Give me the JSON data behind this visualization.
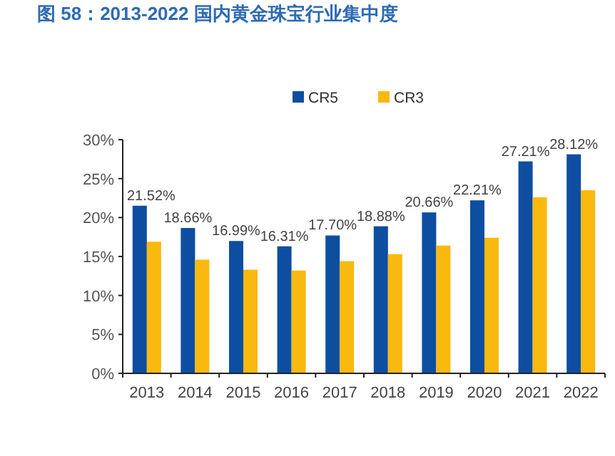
{
  "chart_data": {
    "type": "bar",
    "title": "图 58：2013-2022 国内黄金珠宝行业集中度",
    "categories": [
      "2013",
      "2014",
      "2015",
      "2016",
      "2017",
      "2018",
      "2019",
      "2020",
      "2021",
      "2022"
    ],
    "series": [
      {
        "name": "CR5",
        "color": "#0d4ea1",
        "values": [
          21.52,
          18.66,
          16.99,
          16.31,
          17.7,
          18.88,
          20.66,
          22.21,
          27.21,
          28.12
        ],
        "value_labels": [
          "21.52%",
          "18.66%",
          "16.99%",
          "16.31%",
          "17.70%",
          "18.88%",
          "20.66%",
          "22.21%",
          "27.21%",
          "28.12%"
        ]
      },
      {
        "name": "CR3",
        "color": "#f9b90f",
        "values": [
          16.9,
          14.6,
          13.3,
          13.2,
          14.4,
          15.3,
          16.4,
          17.4,
          22.6,
          23.5
        ]
      }
    ],
    "ylim": [
      0,
      30
    ],
    "yticks": [
      {
        "value": 0,
        "label": "0%"
      },
      {
        "value": 5,
        "label": "5%"
      },
      {
        "value": 10,
        "label": "10%"
      },
      {
        "value": 15,
        "label": "15%"
      },
      {
        "value": 20,
        "label": "20%"
      },
      {
        "value": 25,
        "label": "25%"
      },
      {
        "value": 30,
        "label": "30%"
      }
    ],
    "legend": "top",
    "grid": false
  }
}
